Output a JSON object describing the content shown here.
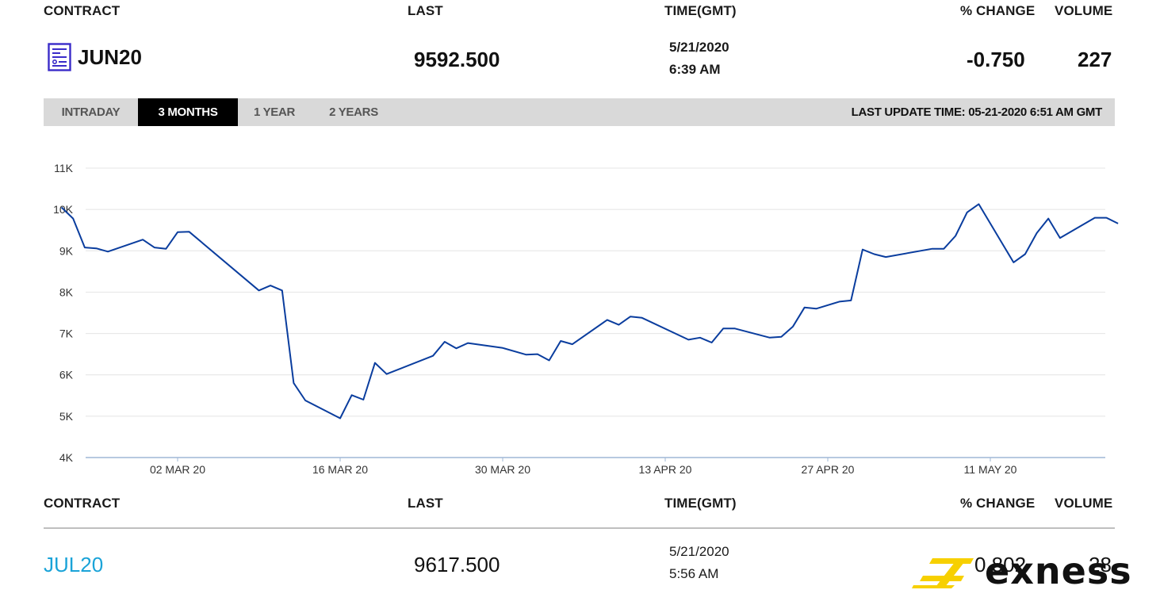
{
  "header": {
    "contract": "CONTRACT",
    "last": "LAST",
    "time": "TIME(GMT)",
    "pct_change": "% CHANGE",
    "volume": "VOLUME"
  },
  "main_row": {
    "contract": "JUN20",
    "last": "9592.500",
    "date": "5/21/2020",
    "time": "6:39 AM",
    "pct_change": "-0.750",
    "volume": "227",
    "icon": "document-chart-icon",
    "icon_color": "#3a2cc9"
  },
  "tabs": [
    {
      "label": "INTRADAY",
      "active": false
    },
    {
      "label": "3 MONTHS",
      "active": true
    },
    {
      "label": "1 YEAR",
      "active": false
    },
    {
      "label": "2 YEARS",
      "active": false
    }
  ],
  "last_update": "LAST UPDATE TIME: 05-21-2020 6:51 AM GMT",
  "chart_data": {
    "type": "line",
    "title": "",
    "xlabel": "",
    "ylabel": "",
    "ylim": [
      4000,
      11000
    ],
    "y_ticks": [
      {
        "value": 11000,
        "label": "11K"
      },
      {
        "value": 10000,
        "label": "10K"
      },
      {
        "value": 9000,
        "label": "9K"
      },
      {
        "value": 8000,
        "label": "8K"
      },
      {
        "value": 7000,
        "label": "7K"
      },
      {
        "value": 6000,
        "label": "6K"
      },
      {
        "value": 5000,
        "label": "5K"
      },
      {
        "value": 4000,
        "label": "4K"
      }
    ],
    "x_ticks": [
      {
        "date": "2020-03-02",
        "label": "02 MAR 20"
      },
      {
        "date": "2020-03-16",
        "label": "16 MAR 20"
      },
      {
        "date": "2020-03-30",
        "label": "30 MAR 20"
      },
      {
        "date": "2020-04-13",
        "label": "13 APR 20"
      },
      {
        "date": "2020-04-27",
        "label": "27 APR 20"
      },
      {
        "date": "2020-05-11",
        "label": "11 MAY 20"
      }
    ],
    "line_color": "#0a3d9e",
    "grid": true,
    "series": [
      {
        "points": [
          [
            "2020-02-21",
            10050
          ],
          [
            "2020-02-22",
            9780
          ],
          [
            "2020-02-23",
            9080
          ],
          [
            "2020-02-24",
            9060
          ],
          [
            "2020-02-25",
            8980
          ],
          [
            "2020-02-28",
            9270
          ],
          [
            "2020-02-29",
            9080
          ],
          [
            "2020-03-01",
            9050
          ],
          [
            "2020-03-02",
            9450
          ],
          [
            "2020-03-03",
            9460
          ],
          [
            "2020-03-09",
            8040
          ],
          [
            "2020-03-10",
            8160
          ],
          [
            "2020-03-11",
            8040
          ],
          [
            "2020-03-12",
            5800
          ],
          [
            "2020-03-13",
            5380
          ],
          [
            "2020-03-16",
            4950
          ],
          [
            "2020-03-17",
            5510
          ],
          [
            "2020-03-18",
            5400
          ],
          [
            "2020-03-19",
            6290
          ],
          [
            "2020-03-20",
            6020
          ],
          [
            "2020-03-24",
            6460
          ],
          [
            "2020-03-25",
            6800
          ],
          [
            "2020-03-26",
            6640
          ],
          [
            "2020-03-27",
            6770
          ],
          [
            "2020-03-30",
            6650
          ],
          [
            "2020-04-01",
            6490
          ],
          [
            "2020-04-02",
            6500
          ],
          [
            "2020-04-03",
            6350
          ],
          [
            "2020-04-04",
            6820
          ],
          [
            "2020-04-05",
            6740
          ],
          [
            "2020-04-08",
            7330
          ],
          [
            "2020-04-09",
            7210
          ],
          [
            "2020-04-10",
            7410
          ],
          [
            "2020-04-11",
            7380
          ],
          [
            "2020-04-15",
            6850
          ],
          [
            "2020-04-16",
            6900
          ],
          [
            "2020-04-17",
            6780
          ],
          [
            "2020-04-18",
            7120
          ],
          [
            "2020-04-19",
            7120
          ],
          [
            "2020-04-22",
            6900
          ],
          [
            "2020-04-23",
            6920
          ],
          [
            "2020-04-24",
            7170
          ],
          [
            "2020-04-25",
            7630
          ],
          [
            "2020-04-26",
            7600
          ],
          [
            "2020-04-28",
            7770
          ],
          [
            "2020-04-29",
            7800
          ],
          [
            "2020-04-30",
            9030
          ],
          [
            "2020-05-01",
            8920
          ],
          [
            "2020-05-02",
            8850
          ],
          [
            "2020-05-06",
            9050
          ],
          [
            "2020-05-07",
            9050
          ],
          [
            "2020-05-08",
            9360
          ],
          [
            "2020-05-09",
            9930
          ],
          [
            "2020-05-10",
            10130
          ],
          [
            "2020-05-13",
            8720
          ],
          [
            "2020-05-14",
            8920
          ],
          [
            "2020-05-15",
            9430
          ],
          [
            "2020-05-16",
            9780
          ],
          [
            "2020-05-17",
            9310
          ],
          [
            "2020-05-20",
            9800
          ],
          [
            "2020-05-21",
            9800
          ],
          [
            "2020-05-22",
            9660
          ]
        ]
      }
    ]
  },
  "second_row": {
    "contract": "JUL20",
    "contract_color": "#1aa3d8",
    "last": "9617.500",
    "date": "5/21/2020",
    "time": "5:56 AM",
    "pct_change": "0.802",
    "volume": "28"
  },
  "watermark": {
    "text": "exness",
    "mark_color": "#f7d000",
    "text_color": "#111111"
  }
}
